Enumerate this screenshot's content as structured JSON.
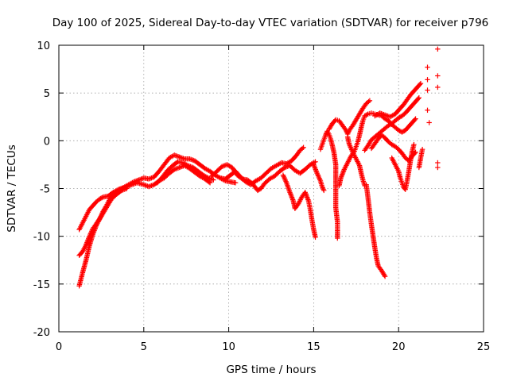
{
  "chart_data": {
    "type": "scatter",
    "title": "Day 100 of 2025, Sidereal Day-to-day VTEC variation (SDTVAR) for receiver p796",
    "xlabel": "GPS time / hours",
    "ylabel": "SDTVAR / TECUs",
    "xlim": [
      0,
      25
    ],
    "ylim": [
      -20,
      10
    ],
    "xticks": [
      "0",
      "5",
      "10",
      "15",
      "20",
      "25"
    ],
    "yticks": [
      "-20",
      "-15",
      "-10",
      "-5",
      "0",
      "5",
      "10"
    ],
    "grid": true,
    "marker": "plus",
    "color": "#ff0000",
    "series": [
      {
        "points": [
          [
            1.2,
            -15.2
          ],
          [
            1.4,
            -13.8
          ],
          [
            1.6,
            -12.5
          ],
          [
            1.8,
            -11.0
          ],
          [
            2.0,
            -9.8
          ],
          [
            2.2,
            -8.9
          ],
          [
            2.4,
            -8.2
          ],
          [
            2.6,
            -7.4
          ],
          [
            2.8,
            -6.8
          ],
          [
            3.0,
            -6.1
          ],
          [
            3.3,
            -5.5
          ],
          [
            3.6,
            -5.1
          ],
          [
            4.0,
            -4.8
          ],
          [
            4.3,
            -4.6
          ],
          [
            4.6,
            -4.4
          ],
          [
            5.0,
            -4.6
          ],
          [
            5.3,
            -4.8
          ],
          [
            5.6,
            -4.6
          ],
          [
            5.9,
            -4.2
          ],
          [
            6.2,
            -3.9
          ],
          [
            6.5,
            -3.4
          ],
          [
            6.8,
            -3.0
          ],
          [
            7.1,
            -2.8
          ],
          [
            7.4,
            -2.6
          ],
          [
            7.7,
            -2.9
          ],
          [
            8.0,
            -3.3
          ],
          [
            8.3,
            -3.7
          ],
          [
            8.6,
            -4.0
          ],
          [
            8.9,
            -4.4
          ]
        ]
      },
      {
        "points": [
          [
            1.2,
            -12.0
          ],
          [
            1.4,
            -11.6
          ],
          [
            1.6,
            -10.9
          ],
          [
            1.8,
            -10.0
          ],
          [
            2.0,
            -9.2
          ],
          [
            2.2,
            -8.7
          ],
          [
            2.5,
            -7.9
          ],
          [
            2.8,
            -7.0
          ],
          [
            3.1,
            -6.1
          ],
          [
            3.4,
            -5.6
          ],
          [
            3.7,
            -5.2
          ],
          [
            4.0,
            -5.0
          ]
        ]
      },
      {
        "points": [
          [
            1.2,
            -9.3
          ],
          [
            1.4,
            -8.6
          ],
          [
            1.6,
            -7.9
          ],
          [
            1.8,
            -7.2
          ],
          [
            2.0,
            -6.8
          ],
          [
            2.2,
            -6.4
          ],
          [
            2.4,
            -6.1
          ],
          [
            2.6,
            -5.9
          ],
          [
            2.9,
            -5.8
          ],
          [
            3.2,
            -5.4
          ],
          [
            3.5,
            -5.1
          ],
          [
            3.8,
            -4.9
          ],
          [
            4.1,
            -4.6
          ],
          [
            4.4,
            -4.3
          ],
          [
            4.7,
            -4.1
          ],
          [
            5.0,
            -3.9
          ],
          [
            5.3,
            -4.0
          ],
          [
            5.6,
            -3.8
          ],
          [
            5.9,
            -3.2
          ],
          [
            6.2,
            -2.5
          ],
          [
            6.5,
            -1.8
          ],
          [
            6.8,
            -1.5
          ],
          [
            7.1,
            -1.7
          ],
          [
            7.4,
            -1.9
          ],
          [
            7.7,
            -1.9
          ],
          [
            8.0,
            -2.1
          ],
          [
            8.3,
            -2.5
          ],
          [
            8.6,
            -2.9
          ],
          [
            8.9,
            -3.2
          ],
          [
            9.2,
            -3.6
          ],
          [
            9.5,
            -3.9
          ],
          [
            9.8,
            -4.2
          ],
          [
            10.1,
            -4.3
          ],
          [
            10.4,
            -4.4
          ]
        ]
      },
      {
        "points": [
          [
            5.8,
            -4.4
          ],
          [
            6.1,
            -3.8
          ],
          [
            6.4,
            -3.1
          ],
          [
            6.7,
            -2.6
          ],
          [
            7.0,
            -2.2
          ],
          [
            7.3,
            -2.3
          ],
          [
            7.6,
            -2.6
          ],
          [
            7.9,
            -2.8
          ],
          [
            8.2,
            -3.2
          ],
          [
            8.5,
            -3.6
          ],
          [
            8.8,
            -3.9
          ],
          [
            9.1,
            -4.1
          ]
        ]
      },
      {
        "points": [
          [
            9.0,
            -3.7
          ],
          [
            9.3,
            -3.2
          ],
          [
            9.6,
            -2.7
          ],
          [
            9.9,
            -2.5
          ],
          [
            10.2,
            -2.8
          ],
          [
            10.5,
            -3.6
          ],
          [
            10.8,
            -4.0
          ],
          [
            11.1,
            -4.1
          ],
          [
            11.4,
            -4.5
          ],
          [
            11.7,
            -5.2
          ],
          [
            11.9,
            -5.0
          ],
          [
            12.1,
            -4.5
          ],
          [
            12.4,
            -4.0
          ],
          [
            12.7,
            -3.7
          ],
          [
            13.0,
            -3.2
          ],
          [
            13.3,
            -2.8
          ],
          [
            13.6,
            -2.6
          ],
          [
            13.9,
            -3.1
          ],
          [
            14.2,
            -3.4
          ],
          [
            14.5,
            -3.0
          ],
          [
            14.8,
            -2.5
          ],
          [
            15.1,
            -2.2
          ]
        ]
      },
      {
        "points": [
          [
            9.5,
            -3.9
          ],
          [
            9.8,
            -4.0
          ],
          [
            10.1,
            -3.6
          ],
          [
            10.4,
            -3.2
          ],
          [
            10.7,
            -3.8
          ],
          [
            11.0,
            -4.3
          ],
          [
            11.3,
            -4.6
          ],
          [
            11.6,
            -4.2
          ],
          [
            11.9,
            -3.9
          ],
          [
            12.2,
            -3.4
          ],
          [
            12.5,
            -2.9
          ],
          [
            12.8,
            -2.6
          ],
          [
            13.1,
            -2.3
          ],
          [
            13.4,
            -2.4
          ],
          [
            13.7,
            -2.1
          ],
          [
            14.0,
            -1.5
          ],
          [
            14.2,
            -1.0
          ],
          [
            14.4,
            -0.7
          ]
        ]
      },
      {
        "points": [
          [
            13.2,
            -3.6
          ],
          [
            13.4,
            -4.4
          ],
          [
            13.6,
            -5.4
          ],
          [
            13.8,
            -6.3
          ],
          [
            13.9,
            -7.1
          ],
          [
            14.1,
            -6.6
          ],
          [
            14.3,
            -5.9
          ],
          [
            14.5,
            -5.4
          ],
          [
            14.7,
            -6.3
          ],
          [
            14.8,
            -7.2
          ],
          [
            14.9,
            -8.3
          ],
          [
            15.0,
            -9.3
          ],
          [
            15.1,
            -10.1
          ]
        ]
      },
      {
        "points": [
          [
            15.0,
            -2.5
          ],
          [
            15.2,
            -3.4
          ],
          [
            15.4,
            -4.2
          ],
          [
            15.5,
            -4.8
          ],
          [
            15.6,
            -5.2
          ]
        ]
      },
      {
        "points": [
          [
            15.4,
            -0.9
          ],
          [
            15.5,
            -0.4
          ],
          [
            15.6,
            0.1
          ],
          [
            15.7,
            0.6
          ],
          [
            15.8,
            1.0
          ],
          [
            15.9,
            0.7
          ],
          [
            16.0,
            0.2
          ],
          [
            16.1,
            -0.5
          ],
          [
            16.2,
            -1.3
          ],
          [
            16.3,
            -2.5
          ],
          [
            16.3,
            -4.0
          ],
          [
            16.3,
            -5.5
          ],
          [
            16.3,
            -7.0
          ],
          [
            16.4,
            -8.5
          ],
          [
            16.4,
            -9.4
          ],
          [
            16.4,
            -10.2
          ]
        ]
      },
      {
        "points": [
          [
            15.9,
            1.2
          ],
          [
            16.1,
            1.8
          ],
          [
            16.3,
            2.2
          ],
          [
            16.5,
            2.1
          ],
          [
            16.7,
            1.6
          ],
          [
            16.9,
            1.1
          ],
          [
            17.0,
            0.7
          ],
          [
            17.1,
            1.1
          ],
          [
            17.3,
            1.6
          ],
          [
            17.5,
            2.2
          ],
          [
            17.7,
            2.8
          ],
          [
            17.9,
            3.4
          ],
          [
            18.1,
            3.9
          ],
          [
            18.3,
            4.2
          ]
        ]
      },
      {
        "points": [
          [
            16.5,
            -4.7
          ],
          [
            16.6,
            -3.9
          ],
          [
            16.8,
            -3.0
          ],
          [
            17.0,
            -2.3
          ],
          [
            17.2,
            -1.6
          ],
          [
            17.4,
            -1.1
          ],
          [
            17.5,
            -0.6
          ],
          [
            17.6,
            -0.1
          ],
          [
            17.7,
            0.6
          ],
          [
            17.8,
            1.4
          ],
          [
            17.9,
            2.1
          ],
          [
            18.0,
            2.6
          ],
          [
            18.2,
            2.8
          ],
          [
            18.4,
            2.9
          ],
          [
            18.6,
            2.8
          ],
          [
            18.8,
            2.7
          ],
          [
            19.0,
            2.6
          ],
          [
            19.2,
            2.3
          ],
          [
            19.4,
            2.1
          ],
          [
            19.6,
            1.7
          ],
          [
            19.8,
            1.4
          ],
          [
            20.0,
            1.1
          ],
          [
            20.2,
            0.9
          ],
          [
            20.4,
            1.1
          ],
          [
            20.6,
            1.5
          ],
          [
            20.8,
            1.9
          ],
          [
            21.0,
            2.3
          ]
        ]
      },
      {
        "points": [
          [
            17.0,
            0.4
          ],
          [
            17.1,
            -0.4
          ],
          [
            17.3,
            -1.2
          ],
          [
            17.5,
            -1.9
          ],
          [
            17.7,
            -2.6
          ],
          [
            17.8,
            -3.4
          ],
          [
            17.9,
            -4.1
          ],
          [
            18.0,
            -4.7
          ]
        ]
      },
      {
        "points": [
          [
            18.1,
            -4.6
          ],
          [
            18.2,
            -6.0
          ],
          [
            18.3,
            -7.5
          ],
          [
            18.4,
            -8.8
          ],
          [
            18.5,
            -10.0
          ],
          [
            18.6,
            -11.2
          ],
          [
            18.7,
            -12.3
          ],
          [
            18.8,
            -13.1
          ],
          [
            19.0,
            -13.6
          ],
          [
            19.2,
            -14.2
          ]
        ]
      },
      {
        "points": [
          [
            18.0,
            -1.0
          ],
          [
            18.2,
            -0.5
          ],
          [
            18.4,
            0.1
          ],
          [
            18.6,
            0.4
          ],
          [
            18.8,
            0.7
          ],
          [
            19.0,
            1.0
          ],
          [
            19.2,
            1.3
          ],
          [
            19.4,
            1.6
          ],
          [
            19.6,
            1.8
          ],
          [
            19.8,
            2.1
          ],
          [
            20.0,
            2.4
          ],
          [
            20.2,
            2.6
          ],
          [
            20.4,
            2.9
          ],
          [
            20.6,
            3.3
          ],
          [
            20.8,
            3.7
          ],
          [
            21.0,
            4.1
          ],
          [
            21.2,
            4.5
          ]
        ]
      },
      {
        "points": [
          [
            18.4,
            -0.8
          ],
          [
            18.6,
            -0.3
          ],
          [
            18.8,
            0.2
          ],
          [
            19.0,
            0.6
          ],
          [
            19.2,
            0.3
          ],
          [
            19.4,
            -0.1
          ],
          [
            19.6,
            -0.4
          ],
          [
            19.8,
            -0.6
          ],
          [
            20.0,
            -0.9
          ],
          [
            20.2,
            -1.3
          ],
          [
            20.4,
            -1.8
          ],
          [
            20.6,
            -2.1
          ],
          [
            20.8,
            -1.6
          ],
          [
            21.0,
            -1.2
          ]
        ]
      },
      {
        "points": [
          [
            18.6,
            2.6
          ],
          [
            18.9,
            2.9
          ],
          [
            19.2,
            2.7
          ],
          [
            19.5,
            2.5
          ],
          [
            19.8,
            2.8
          ],
          [
            20.1,
            3.4
          ],
          [
            20.3,
            3.8
          ],
          [
            20.5,
            4.3
          ],
          [
            20.7,
            4.8
          ],
          [
            20.9,
            5.2
          ],
          [
            21.1,
            5.6
          ],
          [
            21.3,
            6.0
          ]
        ]
      },
      {
        "points": [
          [
            19.6,
            -1.8
          ],
          [
            19.8,
            -2.5
          ],
          [
            20.0,
            -3.2
          ],
          [
            20.1,
            -3.9
          ],
          [
            20.2,
            -4.4
          ],
          [
            20.3,
            -4.9
          ],
          [
            20.4,
            -5.1
          ],
          [
            20.5,
            -4.2
          ],
          [
            20.6,
            -3.2
          ],
          [
            20.7,
            -2.1
          ],
          [
            20.8,
            -1.1
          ],
          [
            20.9,
            -0.4
          ]
        ]
      },
      {
        "points": [
          [
            21.2,
            -2.8
          ],
          [
            21.3,
            -1.8
          ],
          [
            21.4,
            -0.9
          ]
        ]
      },
      {
        "points": [
          [
            21.7,
            7.7
          ],
          [
            21.7,
            6.4
          ],
          [
            21.7,
            5.3
          ],
          [
            21.7,
            3.2
          ],
          [
            21.8,
            1.9
          ],
          [
            22.3,
            9.6
          ],
          [
            22.3,
            6.8
          ],
          [
            22.3,
            5.6
          ],
          [
            22.3,
            -2.3
          ],
          [
            22.3,
            -2.8
          ]
        ]
      }
    ]
  }
}
